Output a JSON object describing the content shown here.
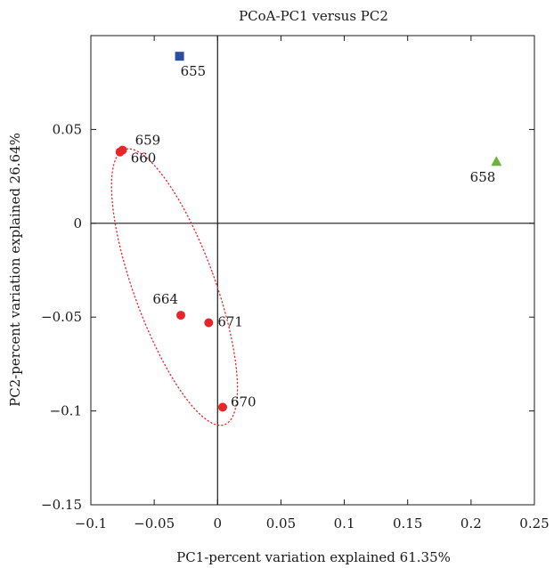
{
  "chart_data": {
    "type": "scatter",
    "title": "PCoA-PC1 versus PC2",
    "xlabel": "PC1-percent variation explained 61.35%",
    "ylabel": "PC2-percent variation explained 26.64%",
    "xlim": [
      -0.1,
      0.25
    ],
    "ylim": [
      -0.15,
      0.1
    ],
    "xticks": [
      -0.1,
      -0.05,
      0,
      0.05,
      0.1,
      0.15,
      0.2,
      0.25
    ],
    "xtick_labels": [
      "−0.1",
      "−0.05",
      "0",
      "0.05",
      "0.1",
      "0.15",
      "0.2",
      "0.25"
    ],
    "yticks": [
      -0.15,
      -0.1,
      -0.05,
      0,
      0.05
    ],
    "ytick_labels": [
      "−0.15",
      "−0.1",
      "−0.05",
      "0",
      "0.05"
    ],
    "grid": false,
    "series": [
      {
        "marker": "circle",
        "color": "#e8262a",
        "points": [
          {
            "label": "659",
            "x": -0.075,
            "y": 0.039
          },
          {
            "label": "660",
            "x": -0.077,
            "y": 0.038
          },
          {
            "label": "664",
            "x": -0.029,
            "y": -0.049
          },
          {
            "label": "671",
            "x": -0.007,
            "y": -0.053
          },
          {
            "label": "670",
            "x": 0.004,
            "y": -0.098
          }
        ]
      },
      {
        "marker": "square",
        "color": "#2b4ea0",
        "points": [
          {
            "label": "655",
            "x": -0.03,
            "y": 0.089
          }
        ]
      },
      {
        "marker": "triangle",
        "color": "#6cb33f",
        "points": [
          {
            "label": "658",
            "x": 0.22,
            "y": 0.033
          }
        ]
      }
    ],
    "ellipse": {
      "style": "dotted",
      "color": "#e8262a",
      "cx": -0.034,
      "cy": -0.034,
      "rx": 0.032,
      "ry": 0.078,
      "rotation_deg": -20
    }
  }
}
